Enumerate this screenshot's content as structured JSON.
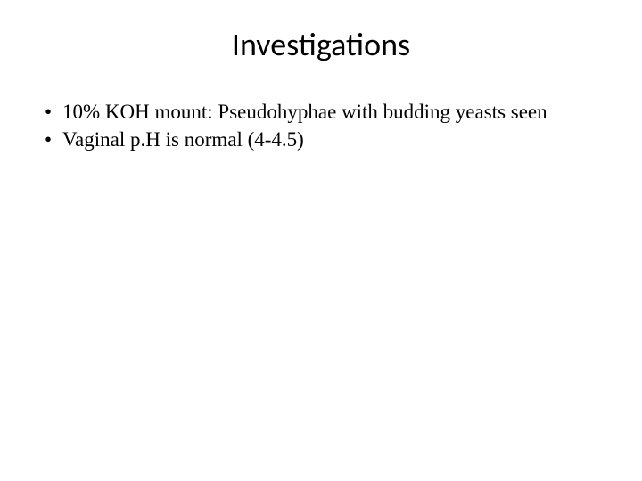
{
  "slide": {
    "title": "Investigations",
    "title_fontsize": 36,
    "title_font": "Calibri",
    "title_color": "#000000",
    "background_color": "#ffffff",
    "body_font": "Times New Roman",
    "body_fontsize": 23,
    "body_color": "#000000",
    "bullet_char": "•",
    "bullets": [
      "10% KOH mount: Pseudohyphae with budding yeasts seen",
      "Vaginal p.H is normal (4-4.5)"
    ]
  }
}
